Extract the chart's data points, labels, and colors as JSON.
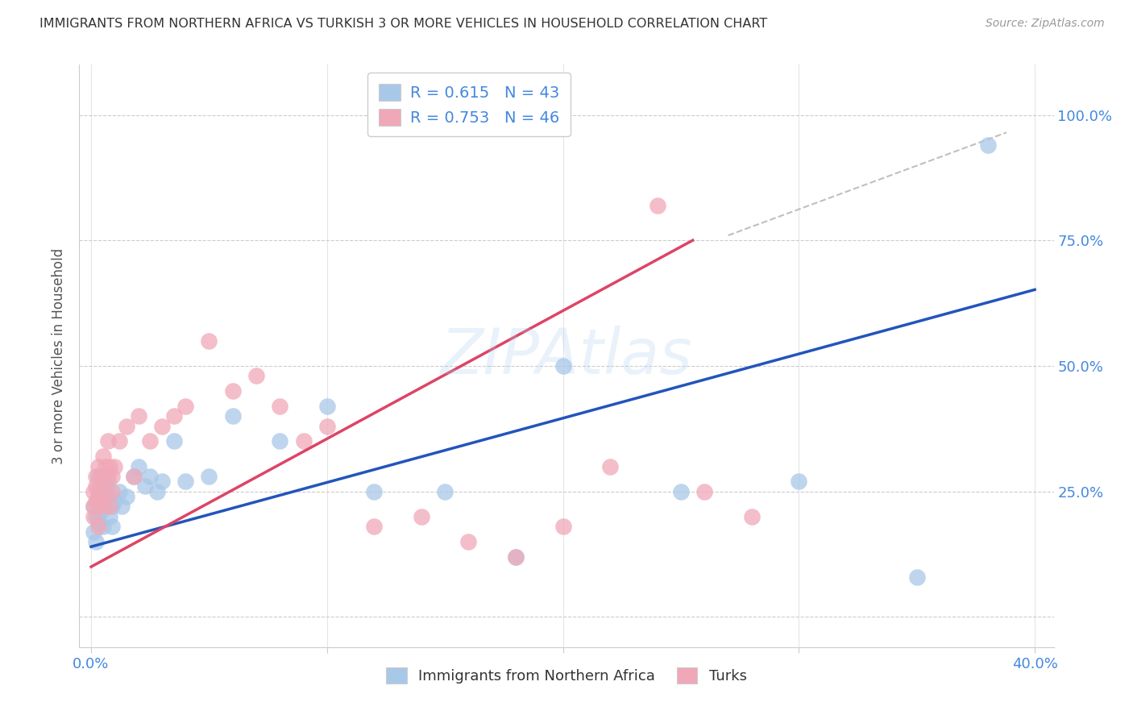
{
  "title": "IMMIGRANTS FROM NORTHERN AFRICA VS TURKISH 3 OR MORE VEHICLES IN HOUSEHOLD CORRELATION CHART",
  "source": "Source: ZipAtlas.com",
  "ylabel": "3 or more Vehicles in Household",
  "blue_R": "0.615",
  "blue_N": "43",
  "pink_R": "0.753",
  "pink_N": "46",
  "blue_color": "#a8c8e8",
  "pink_color": "#f0a8b8",
  "blue_line_color": "#2255bb",
  "pink_line_color": "#dd4466",
  "dashed_color": "#b0b0b0",
  "legend_label_blue": "Immigrants from Northern Africa",
  "legend_label_pink": "Turks",
  "watermark": "ZIPAtlas",
  "watermark_color": "#aaccee",
  "title_color": "#333333",
  "source_color": "#999999",
  "axis_color": "#4488dd",
  "ylabel_color": "#555555",
  "grid_color": "#cccccc",
  "blue_intercept": 0.14,
  "blue_slope": 1.28,
  "pink_intercept": 0.1,
  "pink_slope": 2.55,
  "blue_scatter_x": [
    0.001,
    0.001,
    0.002,
    0.002,
    0.003,
    0.003,
    0.003,
    0.004,
    0.004,
    0.005,
    0.005,
    0.006,
    0.006,
    0.007,
    0.007,
    0.008,
    0.008,
    0.009,
    0.009,
    0.01,
    0.012,
    0.013,
    0.015,
    0.018,
    0.02,
    0.023,
    0.025,
    0.028,
    0.03,
    0.035,
    0.04,
    0.05,
    0.06,
    0.08,
    0.1,
    0.12,
    0.15,
    0.18,
    0.2,
    0.25,
    0.3,
    0.35,
    0.38
  ],
  "blue_scatter_y": [
    0.22,
    0.17,
    0.2,
    0.15,
    0.24,
    0.19,
    0.28,
    0.21,
    0.23,
    0.25,
    0.18,
    0.22,
    0.26,
    0.23,
    0.27,
    0.2,
    0.24,
    0.22,
    0.18,
    0.23,
    0.25,
    0.22,
    0.24,
    0.28,
    0.3,
    0.26,
    0.28,
    0.25,
    0.27,
    0.35,
    0.27,
    0.28,
    0.4,
    0.35,
    0.42,
    0.25,
    0.25,
    0.12,
    0.5,
    0.25,
    0.27,
    0.08,
    0.94
  ],
  "pink_scatter_x": [
    0.001,
    0.001,
    0.001,
    0.002,
    0.002,
    0.002,
    0.003,
    0.003,
    0.003,
    0.004,
    0.004,
    0.005,
    0.005,
    0.005,
    0.006,
    0.006,
    0.007,
    0.007,
    0.008,
    0.008,
    0.009,
    0.009,
    0.01,
    0.012,
    0.015,
    0.018,
    0.02,
    0.025,
    0.03,
    0.035,
    0.04,
    0.05,
    0.06,
    0.07,
    0.08,
    0.09,
    0.1,
    0.12,
    0.14,
    0.16,
    0.18,
    0.2,
    0.22,
    0.24,
    0.26,
    0.28
  ],
  "pink_scatter_y": [
    0.22,
    0.25,
    0.2,
    0.28,
    0.23,
    0.26,
    0.25,
    0.3,
    0.18,
    0.28,
    0.23,
    0.32,
    0.22,
    0.28,
    0.3,
    0.25,
    0.35,
    0.28,
    0.3,
    0.22,
    0.28,
    0.25,
    0.3,
    0.35,
    0.38,
    0.28,
    0.4,
    0.35,
    0.38,
    0.4,
    0.42,
    0.55,
    0.45,
    0.48,
    0.42,
    0.35,
    0.38,
    0.18,
    0.2,
    0.15,
    0.12,
    0.18,
    0.3,
    0.82,
    0.25,
    0.2
  ]
}
